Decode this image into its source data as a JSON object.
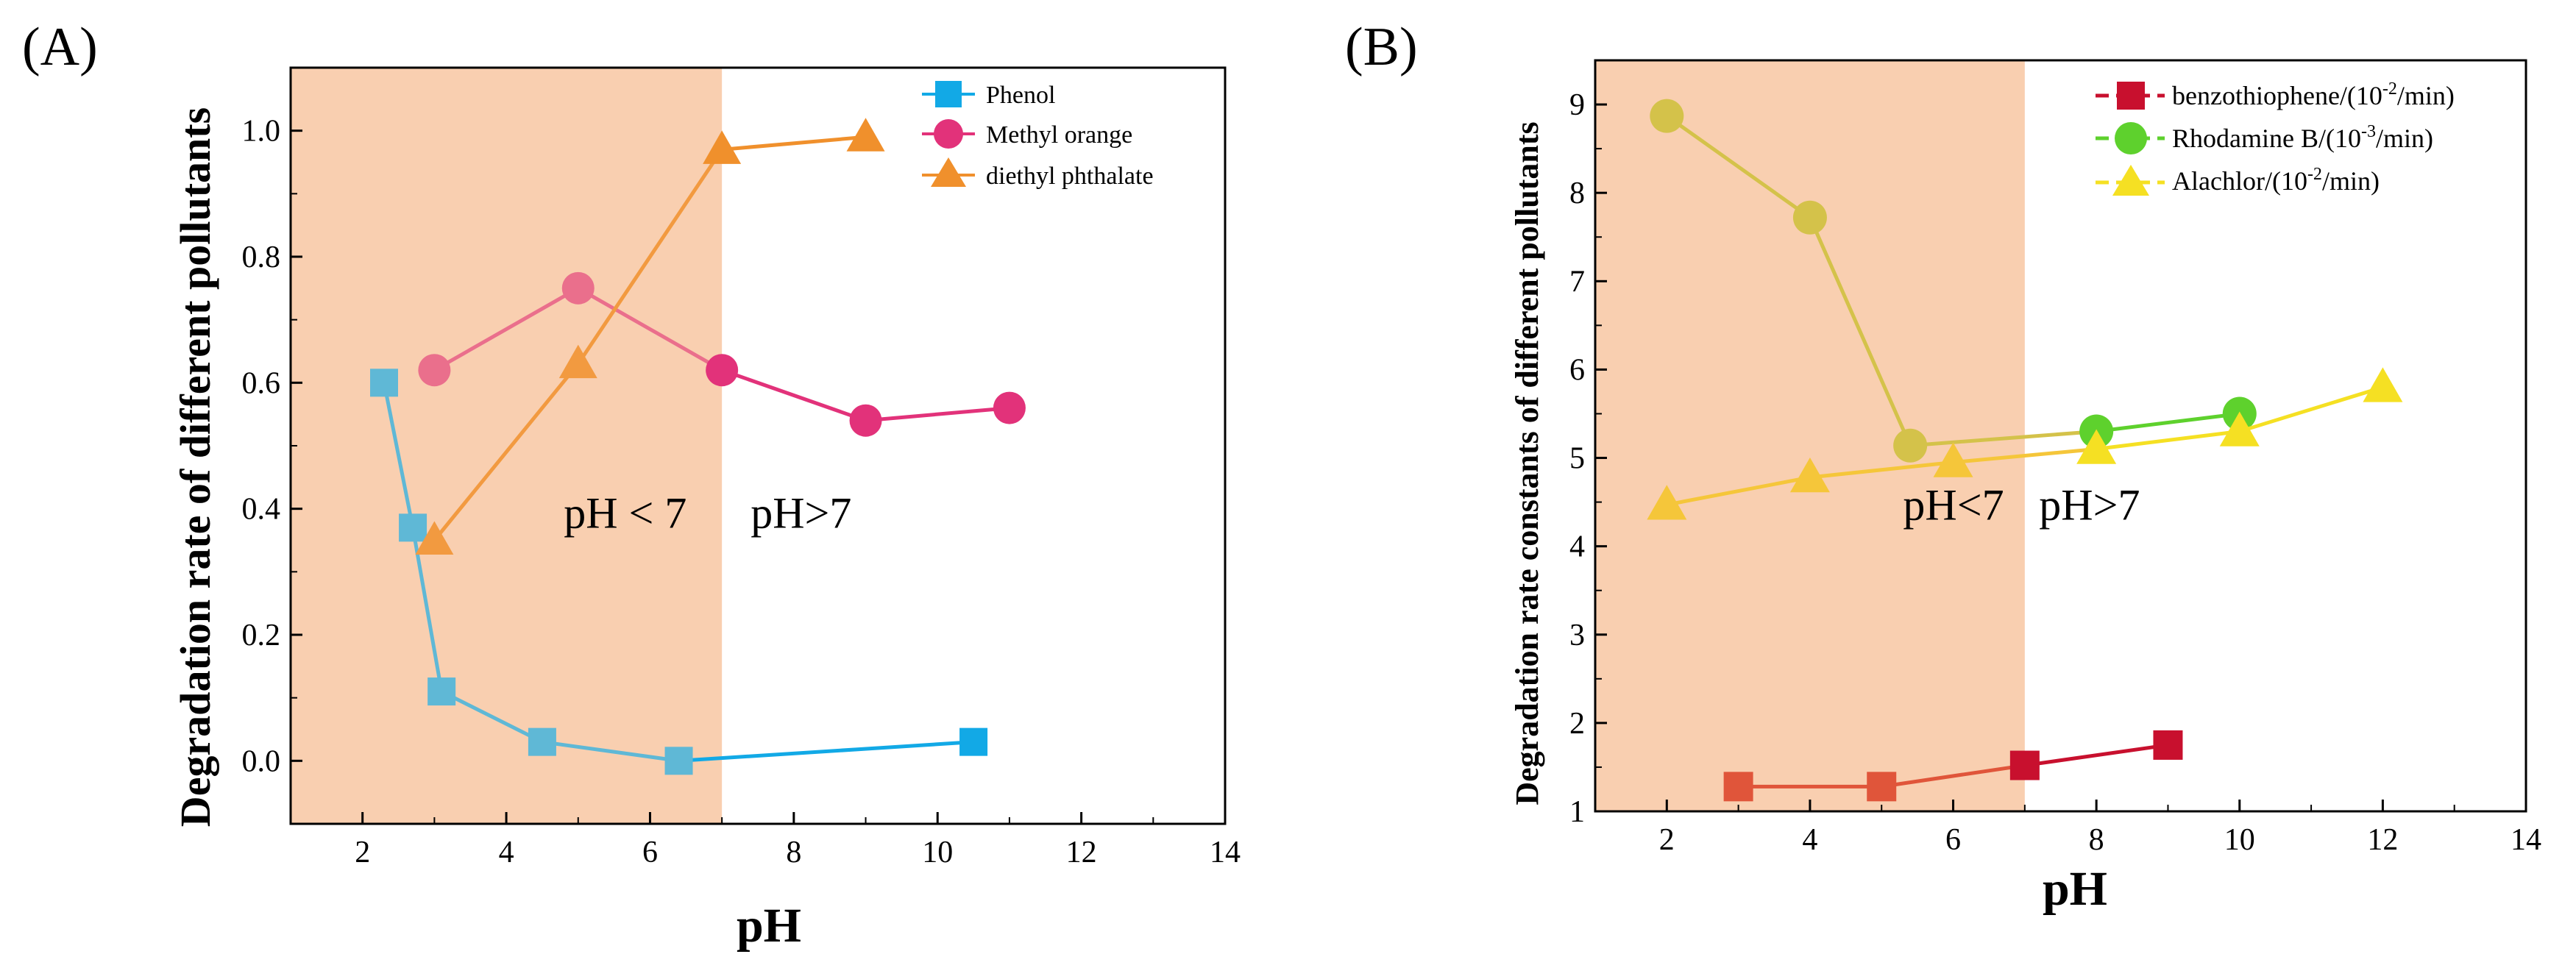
{
  "chart_data": [
    {
      "type": "line",
      "panel_label": "(A)",
      "xlabel": "pH",
      "ylabel": "Degradation rate of different pollutants",
      "xlim": [
        1,
        14
      ],
      "ylim": [
        -0.1,
        1.1
      ],
      "xticks": [
        2,
        4,
        6,
        8,
        10,
        12,
        14
      ],
      "xtick_labels": [
        "2",
        "4",
        "6",
        "8",
        "10",
        "12",
        "14"
      ],
      "yticks": [
        0.0,
        0.2,
        0.4,
        0.6,
        0.8,
        1.0
      ],
      "ytick_labels": [
        "0.0",
        "0.2",
        "0.4",
        "0.6",
        "0.8",
        "1.0"
      ],
      "grid": false,
      "legend_position": "top-right",
      "shaded_region": {
        "x_from": 1,
        "x_to": 7,
        "color": "#f9cfb0"
      },
      "annotations": [
        {
          "text": "pH < 7",
          "x": 4.8,
          "y": 0.37
        },
        {
          "text": "pH>7",
          "x": 7.4,
          "y": 0.37
        }
      ],
      "series": [
        {
          "name": "Phenol",
          "marker": "square",
          "color": "#12a9e6",
          "shaded_color": "#5fb8d6",
          "x": [
            2.3,
            2.7,
            3.1,
            4.5,
            6.4,
            10.5
          ],
          "y": [
            0.6,
            0.37,
            0.11,
            0.03,
            0.0,
            0.03
          ]
        },
        {
          "name": "Methyl orange",
          "marker": "circle",
          "color": "#e2327a",
          "shaded_color": "#ea6f8c",
          "x": [
            3,
            5,
            7,
            9,
            11
          ],
          "y": [
            0.62,
            0.75,
            0.62,
            0.54,
            0.56
          ]
        },
        {
          "name": "diethyl phthalate",
          "marker": "triangle",
          "color": "#f0902c",
          "shaded_color": "#f29a40",
          "x": [
            3,
            5,
            7,
            9
          ],
          "y": [
            0.35,
            0.63,
            0.97,
            0.99
          ]
        }
      ]
    },
    {
      "type": "line",
      "panel_label": "(B)",
      "xlabel": "pH",
      "ylabel": "Degradation rate constants of different pollutants",
      "xlim": [
        1,
        14
      ],
      "ylim": [
        1,
        9.5
      ],
      "xticks": [
        2,
        4,
        6,
        8,
        10,
        12,
        14
      ],
      "xtick_labels": [
        "2",
        "4",
        "6",
        "8",
        "10",
        "12",
        "14"
      ],
      "yticks": [
        1,
        2,
        3,
        4,
        5,
        6,
        7,
        8,
        9
      ],
      "ytick_labels": [
        "1",
        "2",
        "3",
        "4",
        "5",
        "6",
        "7",
        "8",
        "9"
      ],
      "grid": false,
      "legend_position": "top-right",
      "shaded_region": {
        "x_from": 1,
        "x_to": 7,
        "color": "#f9cfb0"
      },
      "annotations": [
        {
          "text": "pH<7",
          "x": 5.3,
          "y": 4.3
        },
        {
          "text": "pH>7",
          "x": 7.2,
          "y": 4.3
        }
      ],
      "series": [
        {
          "name": "benzothiophene/(10",
          "name_exp": "-2",
          "name_tail": "/min)",
          "marker": "square",
          "color": "#c8102e",
          "shaded_color": "#e0553a",
          "x": [
            3,
            5,
            7,
            9
          ],
          "y": [
            1.28,
            1.28,
            1.52,
            1.75
          ]
        },
        {
          "name": "Rhodamine B/(10",
          "name_exp": "-3",
          "name_tail": "/min)",
          "marker": "circle",
          "color": "#5ed12d",
          "shaded_color": "#d4c24a",
          "x": [
            2,
            4,
            5.4,
            8,
            10
          ],
          "y": [
            8.87,
            7.72,
            5.14,
            5.3,
            5.5
          ]
        },
        {
          "name": "Alachlor/(10",
          "name_exp": "-2",
          "name_tail": "/min)",
          "marker": "triangle",
          "color": "#f5e023",
          "shaded_color": "#f5c63a",
          "x": [
            2,
            4,
            6,
            8,
            10,
            12
          ],
          "y": [
            4.47,
            4.78,
            4.95,
            5.1,
            5.3,
            5.8
          ]
        }
      ]
    }
  ]
}
